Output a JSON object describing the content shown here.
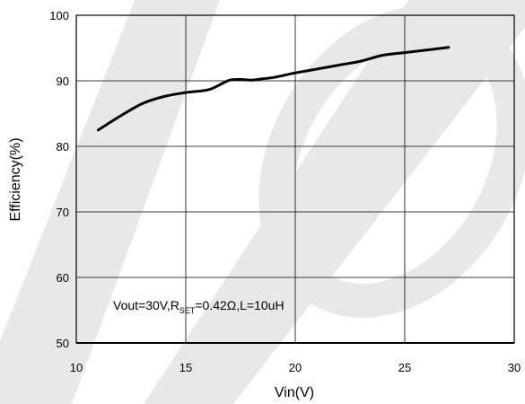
{
  "chart_data": {
    "type": "line",
    "xlabel": "Vin(V)",
    "ylabel": "Efficiency(%)",
    "xlim": [
      10,
      30
    ],
    "ylim": [
      50,
      100
    ],
    "xticks": [
      10,
      15,
      20,
      25,
      30
    ],
    "yticks": [
      50,
      60,
      70,
      80,
      90,
      100
    ],
    "grid": true,
    "annotation": {
      "prefix": "Vout=30V,R",
      "subscript": "SET",
      "suffix": "=0.42Ω,L=10uH"
    },
    "series": [
      {
        "color": "#000000",
        "x": [
          11,
          12,
          13,
          14,
          15,
          16,
          16.5,
          17,
          17.5,
          18,
          18.5,
          19,
          20,
          21,
          22,
          23,
          24,
          25,
          26,
          27
        ],
        "y": [
          82.5,
          84.6,
          86.5,
          87.6,
          88.2,
          88.6,
          89.3,
          90.1,
          90.2,
          90.1,
          90.3,
          90.5,
          91.2,
          91.8,
          92.4,
          93.0,
          93.9,
          94.3,
          94.7,
          95.1
        ]
      }
    ]
  },
  "colors": {
    "grid": "#000000",
    "watermark": "#e6e6e6"
  }
}
